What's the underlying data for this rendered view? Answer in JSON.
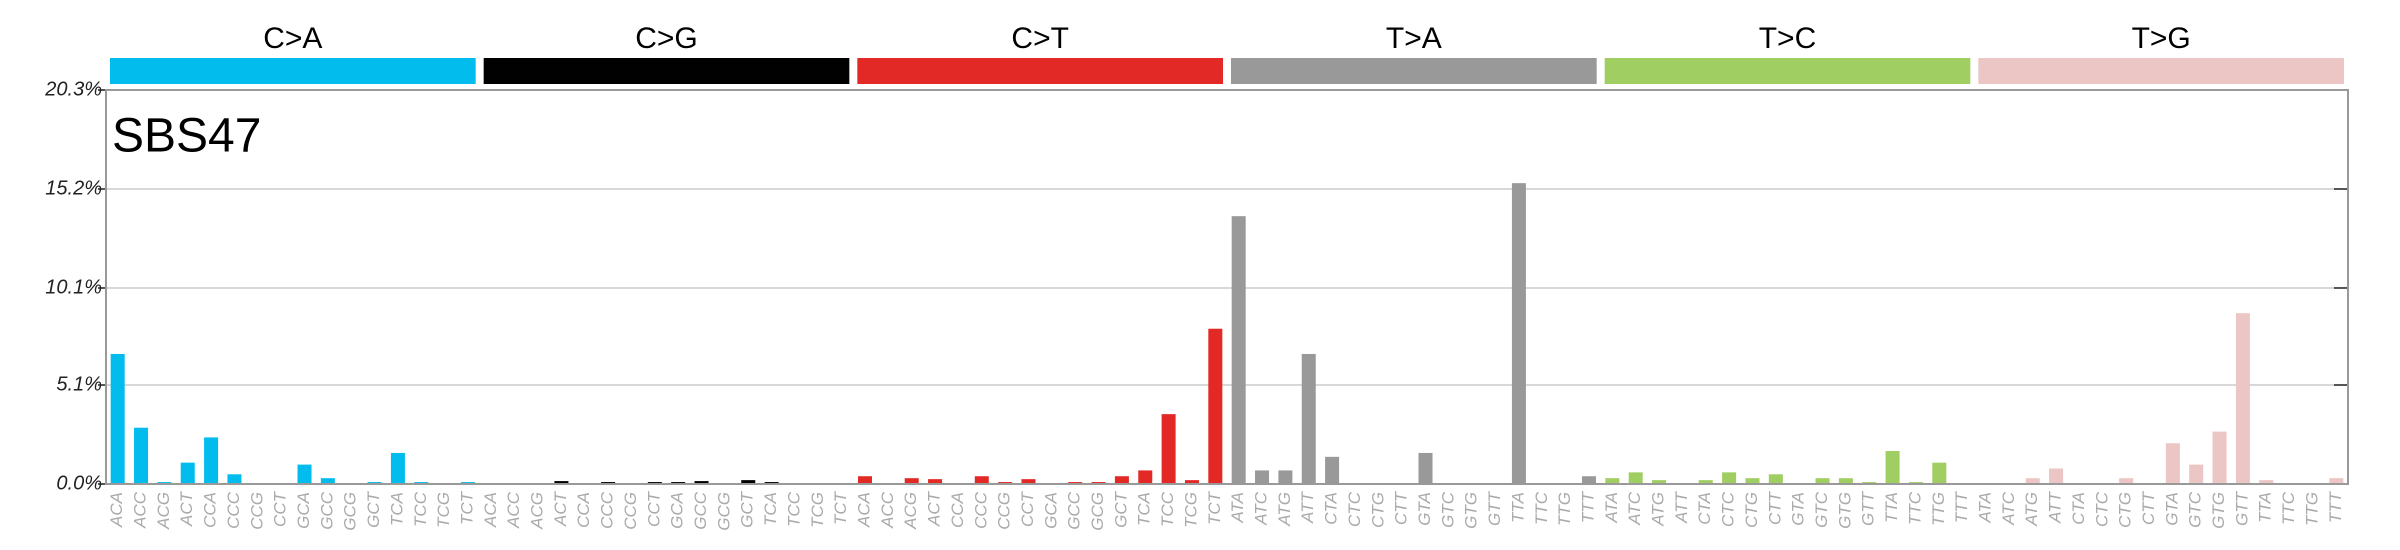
{
  "chart_data": {
    "type": "bar",
    "title": "SBS47",
    "groups": [
      {
        "name": "C>A",
        "color": "#03bcee"
      },
      {
        "name": "C>G",
        "color": "#010101"
      },
      {
        "name": "C>T",
        "color": "#e32926"
      },
      {
        "name": "T>A",
        "color": "#999999"
      },
      {
        "name": "T>C",
        "color": "#a1ce63"
      },
      {
        "name": "T>G",
        "color": "#ebc6c4"
      }
    ],
    "categories": [
      "ACA",
      "ACC",
      "ACG",
      "ACT",
      "CCA",
      "CCC",
      "CCG",
      "CCT",
      "GCA",
      "GCC",
      "GCG",
      "GCT",
      "TCA",
      "TCC",
      "TCG",
      "TCT",
      "ACA",
      "ACC",
      "ACG",
      "ACT",
      "CCA",
      "CCC",
      "CCG",
      "CCT",
      "GCA",
      "GCC",
      "GCG",
      "GCT",
      "TCA",
      "TCC",
      "TCG",
      "TCT",
      "ACA",
      "ACC",
      "ACG",
      "ACT",
      "CCA",
      "CCC",
      "CCG",
      "CCT",
      "GCA",
      "GCC",
      "GCG",
      "GCT",
      "TCA",
      "TCC",
      "TCG",
      "TCT",
      "ATA",
      "ATC",
      "ATG",
      "ATT",
      "CTA",
      "CTC",
      "CTG",
      "CTT",
      "GTA",
      "GTC",
      "GTG",
      "GTT",
      "TTA",
      "TTC",
      "TTG",
      "TTT",
      "ATA",
      "ATC",
      "ATG",
      "ATT",
      "CTA",
      "CTC",
      "CTG",
      "CTT",
      "GTA",
      "GTC",
      "GTG",
      "GTT",
      "TTA",
      "TTC",
      "TTG",
      "TTT",
      "ATA",
      "ATC",
      "ATG",
      "ATT",
      "CTA",
      "CTC",
      "CTG",
      "CTT",
      "GTA",
      "GTC",
      "GTG",
      "GTT",
      "TTA",
      "TTC",
      "TTG",
      "TTT"
    ],
    "values": [
      6.7,
      2.9,
      0.1,
      1.1,
      2.4,
      0.5,
      0.05,
      0.05,
      1.0,
      0.3,
      0.05,
      0.1,
      1.6,
      0.1,
      0.05,
      0.1,
      0.05,
      0.05,
      0.05,
      0.15,
      0.05,
      0.1,
      0.05,
      0.1,
      0.1,
      0.15,
      0.05,
      0.2,
      0.1,
      0.05,
      0.02,
      0.05,
      0.4,
      0.05,
      0.3,
      0.25,
      0.05,
      0.4,
      0.1,
      0.25,
      0.05,
      0.1,
      0.1,
      0.4,
      0.7,
      3.6,
      0.2,
      8.0,
      13.8,
      0.7,
      0.7,
      6.7,
      1.4,
      0.05,
      0.05,
      0.05,
      1.6,
      0.05,
      0.05,
      0.05,
      15.5,
      0.05,
      0.05,
      0.4,
      0.3,
      0.6,
      0.2,
      0.05,
      0.2,
      0.6,
      0.3,
      0.5,
      0.05,
      0.3,
      0.3,
      0.1,
      1.7,
      0.1,
      1.1,
      0.05,
      0.05,
      0.05,
      0.3,
      0.8,
      0.05,
      0.05,
      0.3,
      0.05,
      2.1,
      1.0,
      2.7,
      8.8,
      0.2,
      0.05,
      0.05,
      0.3
    ],
    "ylim": [
      0,
      20.3
    ],
    "yticks": [
      {
        "value": 0,
        "label": "0.0%"
      },
      {
        "value": 5.1,
        "label": "5.1%"
      },
      {
        "value": 10.1,
        "label": "10.1%"
      },
      {
        "value": 15.2,
        "label": "15.2%"
      },
      {
        "value": 20.3,
        "label": "20.3%"
      }
    ],
    "grid": true
  }
}
